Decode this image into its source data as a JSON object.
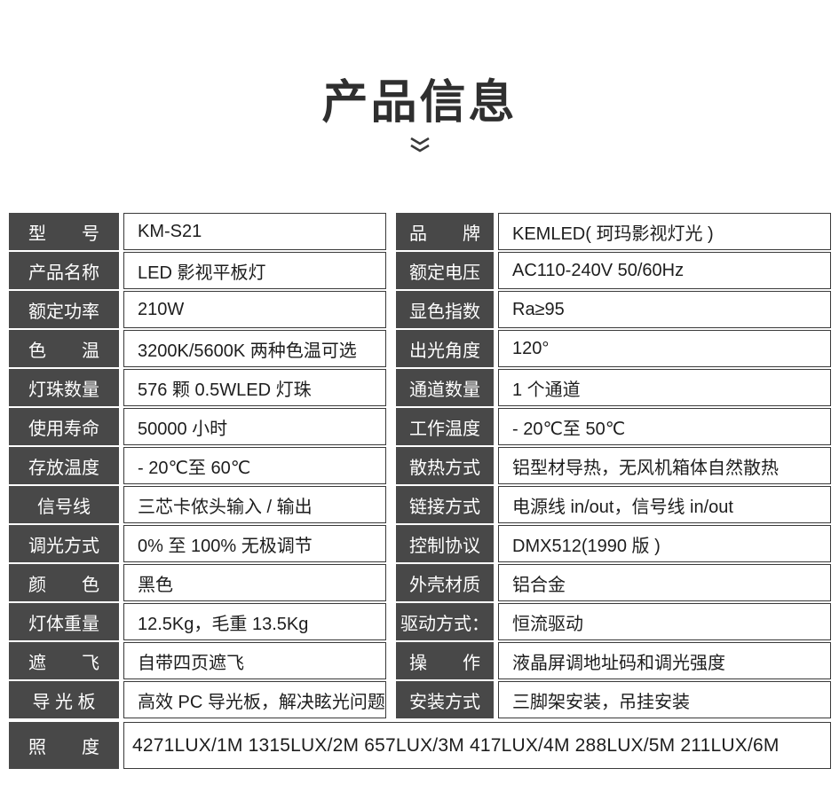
{
  "header": {
    "title": "产品信息",
    "chevron_icon": "double-chevron-down"
  },
  "colors": {
    "label_background": "#484848",
    "label_text": "#ffffff",
    "value_text": "#1d1d1d",
    "cell_border": "#3a3a3a",
    "title_text": "#2f2f2f",
    "page_background": "#ffffff"
  },
  "table": {
    "rows": [
      {
        "left_label": "型　　号",
        "left_value": "KM-S21",
        "right_label": "品　　牌",
        "right_value": "KEMLED( 珂玛影视灯光 )"
      },
      {
        "left_label": "产品名称",
        "left_value": "LED 影视平板灯",
        "right_label": "额定电压",
        "right_value": "AC110-240V 50/60Hz"
      },
      {
        "left_label": "额定功率",
        "left_value": "210W",
        "right_label": "显色指数",
        "right_value": "Ra≥95"
      },
      {
        "left_label": "色　　温",
        "left_value": "3200K/5600K 两种色温可选",
        "right_label": "出光角度",
        "right_value": "120°"
      },
      {
        "left_label": "灯珠数量",
        "left_value": "576 颗 0.5WLED 灯珠",
        "right_label": "通道数量",
        "right_value": "1 个通道"
      },
      {
        "left_label": "使用寿命",
        "left_value": "50000 小时",
        "right_label": "工作温度",
        "right_value": "- 20℃至 50℃"
      },
      {
        "left_label": "存放温度",
        "left_value": "- 20℃至 60℃",
        "right_label": "散热方式",
        "right_value": "铝型材导热，无风机箱体自然散热"
      },
      {
        "left_label": "信号线",
        "left_value": "三芯卡侬头输入 / 输出",
        "right_label": "链接方式",
        "right_value": "电源线 in/out，信号线 in/out"
      },
      {
        "left_label": "调光方式",
        "left_value": "0% 至 100% 无极调节",
        "right_label": "控制协议",
        "right_value": "DMX512(1990 版 )"
      },
      {
        "left_label": "颜　　色",
        "left_value": "黑色",
        "right_label": "外壳材质",
        "right_value": "铝合金"
      },
      {
        "left_label": "灯体重量",
        "left_value": "12.5Kg，毛重 13.5Kg",
        "right_label": "驱动方式：",
        "right_value": "恒流驱动"
      },
      {
        "left_label": "遮　　飞",
        "left_value": "自带四页遮飞",
        "right_label": "操　　作",
        "right_value": "液晶屏调地址码和调光强度"
      },
      {
        "left_label": "导 光 板",
        "left_value": "高效 PC 导光板，解决眩光问题",
        "right_label": "安装方式",
        "right_value": "三脚架安装，吊挂安装"
      }
    ],
    "footer": {
      "label": "照　　度",
      "value": "4271LUX/1M 1315LUX/2M 657LUX/3M 417LUX/4M 288LUX/5M 211LUX/6M"
    }
  }
}
